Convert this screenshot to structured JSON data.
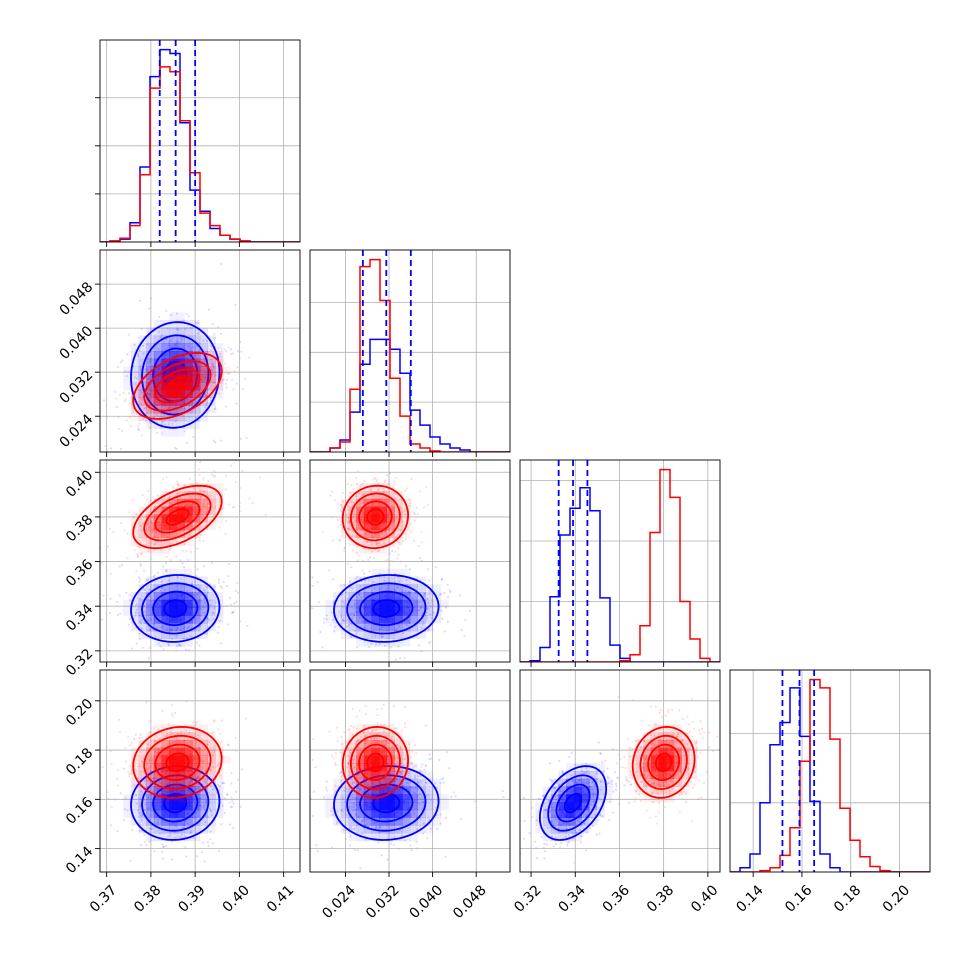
{
  "colors": {
    "series_a": "#0000ff",
    "series_b": "#ff0000",
    "grid": "#b0b0b0",
    "axes": "#000000"
  },
  "chart_data": {
    "type": "corner",
    "n_params": 4,
    "grid": true,
    "legend": "none",
    "series": [
      {
        "color": "#0000ff",
        "key": "a"
      },
      {
        "color": "#ff0000",
        "key": "b"
      }
    ],
    "params": [
      {
        "index": 0,
        "range": [
          0.3685,
          0.4137
        ],
        "ticks": [
          0.37,
          0.38,
          0.39,
          0.4,
          0.41
        ],
        "tick_labels": [
          "0.37",
          "0.38",
          "0.39",
          "0.40",
          "0.41"
        ],
        "quantiles_a": [
          0.382,
          0.3856,
          0.39
        ]
      },
      {
        "index": 1,
        "range": [
          0.0175,
          0.0542
        ],
        "ticks": [
          0.024,
          0.032,
          0.04,
          0.048
        ],
        "tick_labels": [
          "0.024",
          "0.032",
          "0.040",
          "0.048"
        ],
        "quantiles_a": [
          0.0272,
          0.0315,
          0.036
        ]
      },
      {
        "index": 2,
        "range": [
          0.315,
          0.4055
        ],
        "ticks": [
          0.32,
          0.34,
          0.36,
          0.38,
          0.4
        ],
        "tick_labels": [
          "0.32",
          "0.34",
          "0.36",
          "0.38",
          "0.40"
        ],
        "quantiles_a": [
          0.3325,
          0.339,
          0.3455
        ]
      },
      {
        "index": 3,
        "range": [
          0.1305,
          0.2125
        ],
        "ticks": [
          0.14,
          0.16,
          0.18,
          0.2
        ],
        "tick_labels": [
          "0.14",
          "0.16",
          "0.18",
          "0.20"
        ],
        "quantiles_a": [
          0.152,
          0.159,
          0.165
        ]
      }
    ],
    "means": {
      "a": [
        0.3855,
        0.0315,
        0.339,
        0.1585
      ],
      "b": [
        0.386,
        0.0295,
        0.38,
        0.175
      ]
    },
    "sigmas": {
      "a": [
        0.005,
        0.0048,
        0.0075,
        0.0075
      ],
      "b": [
        0.005,
        0.003,
        0.007,
        0.0072
      ]
    },
    "correlations": {
      "a": [
        [
          0,
          1,
          0.05
        ],
        [
          0,
          2,
          0.05
        ],
        [
          0,
          3,
          0.05
        ],
        [
          1,
          2,
          0.05
        ],
        [
          1,
          3,
          0.05
        ],
        [
          2,
          3,
          0.4
        ]
      ],
      "b": [
        [
          0,
          1,
          0.45
        ],
        [
          0,
          2,
          0.5
        ],
        [
          0,
          3,
          0.1
        ],
        [
          1,
          2,
          0.05
        ],
        [
          1,
          3,
          0.05
        ],
        [
          2,
          3,
          0.1
        ]
      ]
    },
    "histograms": [
      {
        "param": 0,
        "bin_start": 0.3685,
        "bin_width": 0.00226,
        "a": [
          0,
          1,
          3,
          20,
          78,
          172,
          200,
          196,
          124,
          54,
          32,
          14,
          7,
          3,
          1,
          0,
          0,
          0,
          0,
          0
        ],
        "b": [
          0,
          1,
          4,
          17,
          70,
          160,
          182,
          177,
          126,
          72,
          30,
          17,
          7,
          3,
          1,
          0,
          0,
          0,
          0,
          0
        ]
      },
      {
        "param": 1,
        "bin_start": 0.0175,
        "bin_width": 0.001835,
        "a": [
          0,
          0,
          4,
          12,
          40,
          88,
          113,
          113,
          103,
          79,
          42,
          27,
          15,
          8,
          4,
          2,
          0,
          0,
          0,
          0
        ],
        "b": [
          0,
          0,
          4,
          10,
          63,
          186,
          193,
          152,
          74,
          36,
          8,
          4,
          1,
          0,
          0,
          0,
          0,
          0,
          0,
          0
        ]
      },
      {
        "param": 2,
        "bin_start": 0.315,
        "bin_width": 0.004525,
        "a": [
          0,
          1,
          12,
          54,
          105,
          127,
          144,
          125,
          53,
          14,
          3,
          0,
          0,
          0,
          0,
          0,
          0,
          0,
          0,
          0
        ],
        "b": [
          0,
          0,
          0,
          0,
          0,
          0,
          0,
          0,
          0,
          0,
          1,
          6,
          30,
          107,
          159,
          136,
          50,
          19,
          3,
          0
        ]
      },
      {
        "param": 3,
        "bin_start": 0.1305,
        "bin_width": 0.0041,
        "a": [
          0,
          3,
          13,
          50,
          92,
          108,
          133,
          98,
          51,
          13,
          3,
          0,
          0,
          0,
          0,
          0,
          0,
          0,
          0,
          0
        ],
        "b": [
          0,
          0,
          0,
          1,
          3,
          12,
          32,
          80,
          139,
          133,
          96,
          46,
          23,
          11,
          4,
          1,
          0,
          0,
          0,
          0
        ]
      }
    ]
  }
}
